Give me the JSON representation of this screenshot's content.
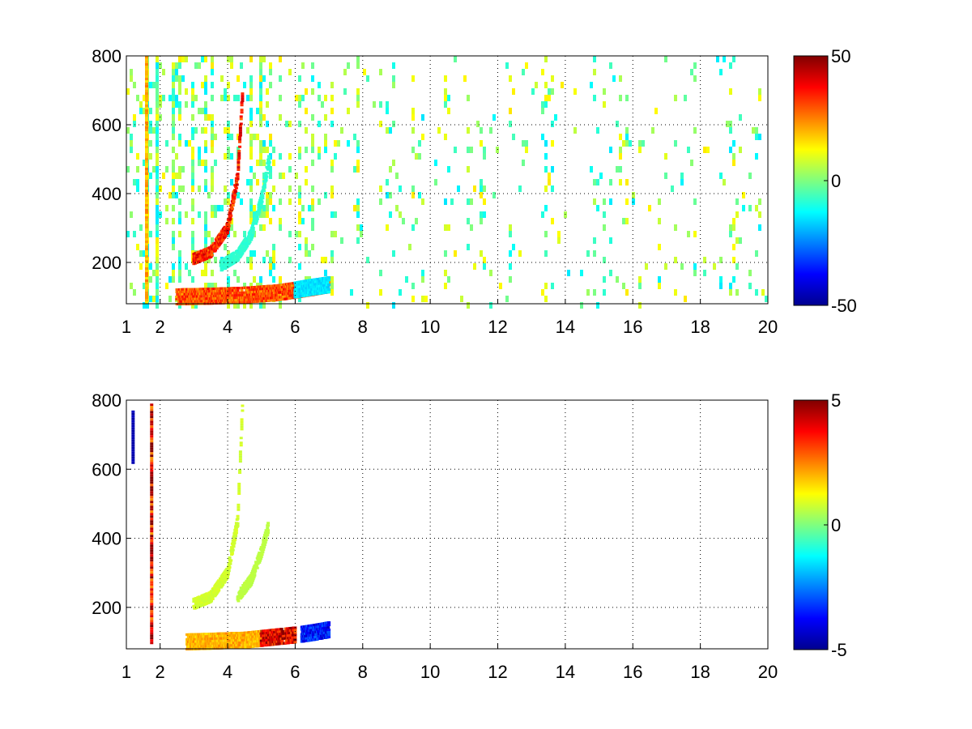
{
  "chart_data": [
    {
      "type": "heatmap",
      "title": "",
      "xlabel": "",
      "ylabel": "",
      "xlim": [
        1,
        20
      ],
      "ylim": [
        80,
        800
      ],
      "xticks": [
        1,
        2,
        4,
        6,
        8,
        10,
        12,
        14,
        16,
        18,
        20
      ],
      "xtick_labels": [
        "1",
        "2",
        "4",
        "6",
        "8",
        "10",
        "12",
        "14",
        "16",
        "18",
        "20"
      ],
      "yticks": [
        200,
        400,
        600,
        800
      ],
      "ytick_labels": [
        "200",
        "400",
        "600",
        "800"
      ],
      "grid": true,
      "colormap": "jet",
      "clim": [
        -50,
        50
      ],
      "colorbar_ticks": [
        -50,
        0,
        50
      ],
      "colorbar_labels": [
        "-50",
        "0",
        "50"
      ],
      "features": [
        {
          "kind": "curve",
          "x": [
            3.0,
            3.5,
            4.0,
            4.3,
            4.45
          ],
          "y": [
            210,
            230,
            300,
            450,
            700
          ],
          "value": 35,
          "spread": 0.5
        },
        {
          "kind": "curve",
          "x": [
            3.8,
            4.3,
            4.7,
            5.0,
            5.25
          ],
          "y": [
            190,
            220,
            280,
            380,
            510
          ],
          "value": -8,
          "spread": 0.3
        },
        {
          "kind": "band",
          "x": [
            2.5,
            3.5,
            4.5,
            5.5,
            6.2,
            7.0
          ],
          "y": [
            100,
            102,
            105,
            112,
            122,
            135
          ],
          "value": 30,
          "spread": 0.6
        },
        {
          "kind": "band",
          "x": [
            6.0,
            6.5,
            7.0
          ],
          "y": [
            120,
            128,
            135
          ],
          "value": -15,
          "spread": 0.4
        },
        {
          "kind": "line",
          "x": [
            1.6,
            1.6
          ],
          "y": [
            80,
            800
          ],
          "value": 20,
          "spread": 0.4
        }
      ],
      "background_noise": {
        "density": 0.35,
        "range": [
          -15,
          15
        ]
      }
    },
    {
      "type": "heatmap",
      "title": "",
      "xlabel": "",
      "ylabel": "",
      "xlim": [
        1,
        20
      ],
      "ylim": [
        80,
        800
      ],
      "xticks": [
        1,
        2,
        4,
        6,
        8,
        10,
        12,
        14,
        16,
        18,
        20
      ],
      "xtick_labels": [
        "1",
        "2",
        "4",
        "6",
        "8",
        "10",
        "12",
        "14",
        "16",
        "18",
        "20"
      ],
      "yticks": [
        200,
        400,
        600,
        800
      ],
      "ytick_labels": [
        "200",
        "400",
        "600",
        "800"
      ],
      "grid": true,
      "colormap": "jet",
      "clim": [
        -5,
        5
      ],
      "colorbar_ticks": [
        -5,
        0,
        5
      ],
      "colorbar_labels": [
        "-5",
        "0",
        "5"
      ],
      "features": [
        {
          "kind": "curve",
          "x": [
            3.0,
            3.5,
            4.0,
            4.3,
            4.45
          ],
          "y": [
            210,
            230,
            300,
            450,
            800
          ],
          "value": 0.8,
          "spread": 0.3
        },
        {
          "kind": "curve",
          "x": [
            4.3,
            4.7,
            5.0,
            5.2
          ],
          "y": [
            230,
            280,
            360,
            430
          ],
          "value": 0.6,
          "spread": 0.2
        },
        {
          "kind": "band",
          "x": [
            2.8,
            3.5,
            4.5,
            5.0
          ],
          "y": [
            100,
            102,
            105,
            110
          ],
          "value": 2.0,
          "spread": 0.5
        },
        {
          "kind": "band",
          "x": [
            5.0,
            5.5,
            6.0
          ],
          "y": [
            110,
            115,
            120
          ],
          "value": 4.0,
          "spread": 0.6
        },
        {
          "kind": "band",
          "x": [
            6.2,
            6.6,
            7.0
          ],
          "y": [
            122,
            128,
            135
          ],
          "value": -3.5,
          "spread": 0.5
        },
        {
          "kind": "line",
          "x": [
            1.75,
            1.75
          ],
          "y": [
            100,
            790
          ],
          "value": 4.0,
          "spread": 1.2
        },
        {
          "kind": "line",
          "x": [
            1.2,
            1.2
          ],
          "y": [
            620,
            770
          ],
          "value": -4.5,
          "spread": 0.1
        }
      ],
      "background_noise": {
        "density": 0.0,
        "range": [
          0,
          0
        ]
      }
    }
  ]
}
